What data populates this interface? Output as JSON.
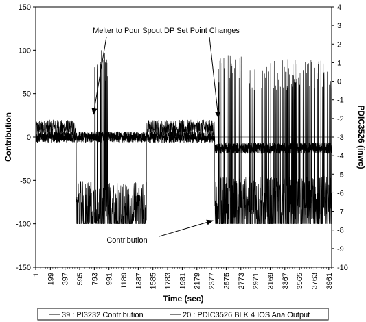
{
  "chart_data": {
    "type": "line",
    "xlabel": "Time (sec)",
    "ylabel": "Contribution",
    "y2label": "PDIC3526 (inwc)",
    "x_ticks": [
      "1",
      "199",
      "397",
      "595",
      "793",
      "991",
      "1189",
      "1387",
      "1585",
      "1783",
      "1981",
      "2179",
      "2377",
      "2575",
      "2773",
      "2971",
      "3169",
      "3367",
      "3565",
      "3763",
      "3961"
    ],
    "xlim": [
      1,
      4000
    ],
    "ylim": [
      -150,
      150
    ],
    "y_ticks": [
      -150,
      -100,
      -50,
      0,
      50,
      100,
      150
    ],
    "y2lim": [
      -10,
      4
    ],
    "y2_ticks": [
      -10,
      -9,
      -8,
      -7,
      -6,
      -5,
      -4,
      -3,
      -2,
      -1,
      0,
      1,
      2,
      3,
      4
    ],
    "annotations": [
      {
        "text": "Melter to Pour Spout DP Set Point Changes",
        "points_to": [
          "x≈800",
          "x≈2430"
        ]
      },
      {
        "text": "Contribution",
        "points_to": [
          "x≈2440"
        ]
      }
    ],
    "legend": {
      "placement": "bottom",
      "entries": [
        "39 : PI3232 Contribution",
        "20 : PDIC3526 BLK 4 IOS Ana Output"
      ]
    },
    "series": [
      {
        "name": "39 : PI3232 Contribution",
        "axis": "left",
        "baseline": 10,
        "noise": 10,
        "segments": [
          {
            "x": [
              550,
              1500
            ],
            "low": -100,
            "base": -75
          },
          {
            "x": [
              2420,
              4000
            ],
            "low": -100,
            "base": -70
          }
        ],
        "spikes_up": [
          {
            "x": [
              790,
              1000
            ],
            "max": 100
          },
          {
            "x": [
              2450,
              2850
            ],
            "max": 100
          },
          {
            "x": [
              2850,
              4000
            ],
            "max": 90
          }
        ]
      },
      {
        "name": "20 : PDIC3526 BLK 4 IOS Ana Output",
        "axis": "right",
        "levels": [
          {
            "x": [
              1,
              2420
            ],
            "value": -3
          },
          {
            "x": [
              2420,
              4000
            ],
            "value": -3.6
          }
        ],
        "noise": 0.3
      }
    ]
  }
}
